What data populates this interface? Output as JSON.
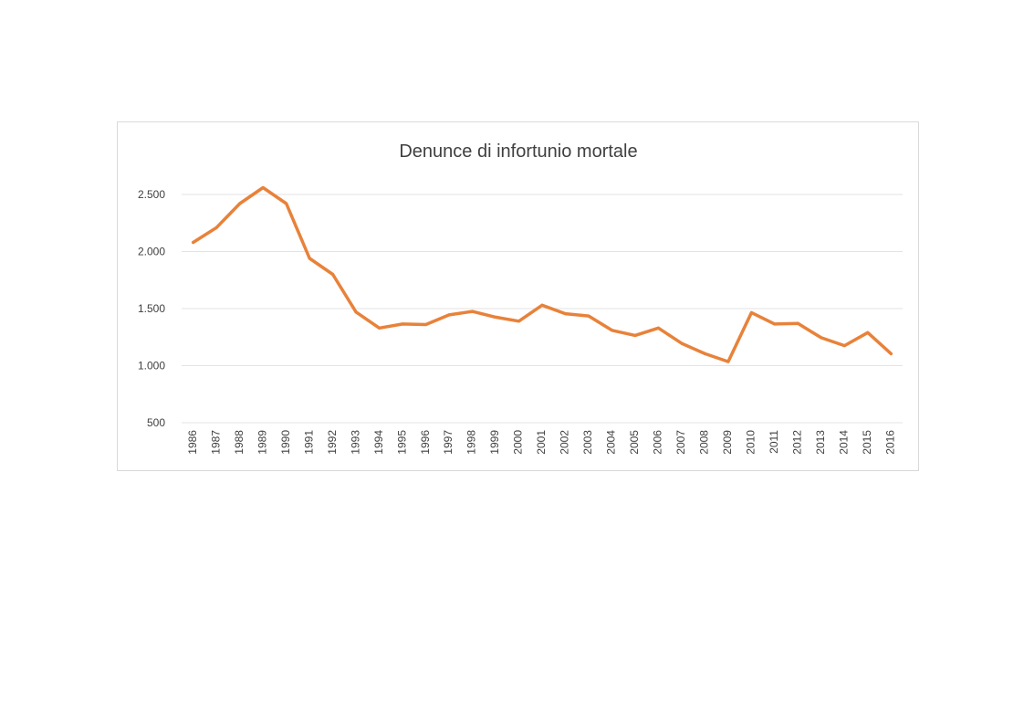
{
  "chart_data": {
    "type": "line",
    "title": "Denunce di infortunio mortale",
    "xlabel": "",
    "ylabel": "",
    "x": [
      "1986",
      "1987",
      "1988",
      "1989",
      "1990",
      "1991",
      "1992",
      "1993",
      "1994",
      "1995",
      "1996",
      "1997",
      "1998",
      "1999",
      "2000",
      "2001",
      "2002",
      "2003",
      "2004",
      "2005",
      "2006",
      "2007",
      "2008",
      "2009",
      "2010",
      "2011",
      "2012",
      "2013",
      "2014",
      "2015",
      "2016"
    ],
    "series": [
      {
        "values": [
          2080,
          2210,
          2420,
          2560,
          2420,
          1940,
          1800,
          1470,
          1330,
          1365,
          1360,
          1445,
          1475,
          1425,
          1390,
          1530,
          1455,
          1435,
          1310,
          1265,
          1330,
          1195,
          1105,
          1035,
          1465,
          1365,
          1370,
          1245,
          1175,
          1290,
          1105
        ],
        "color": "#e8823a"
      }
    ],
    "y_ticks": [
      "500",
      "1.000",
      "1.500",
      "2.000",
      "2.500"
    ],
    "y_tick_values": [
      500,
      1000,
      1500,
      2000,
      2500
    ],
    "ylim": [
      500,
      2500
    ],
    "grid": true,
    "legend": "none",
    "grid_color": "#e3e3e3",
    "frame_color": "#d9d9d9"
  }
}
